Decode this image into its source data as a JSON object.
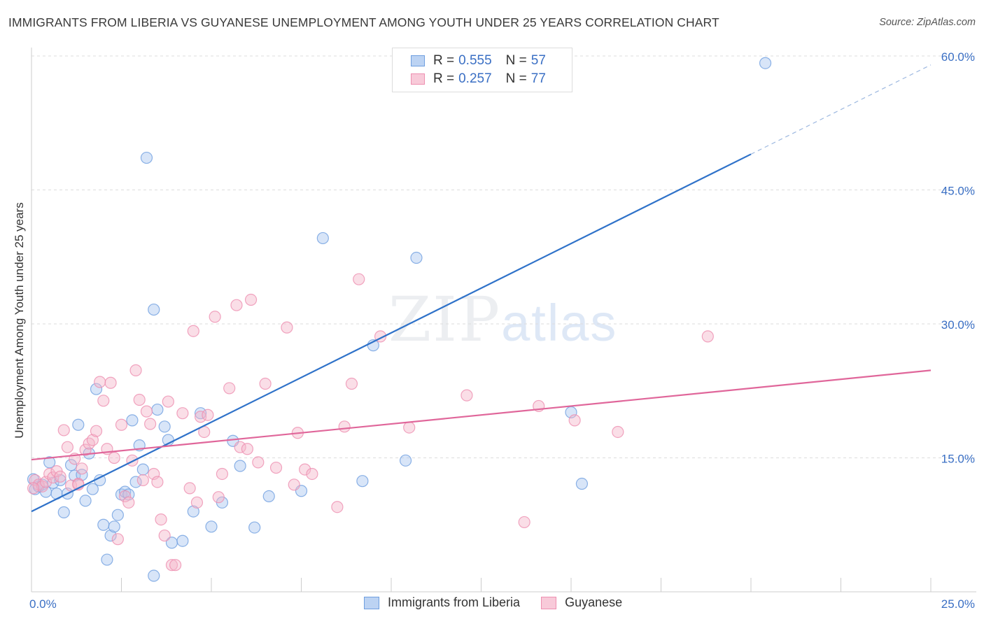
{
  "title": "IMMIGRANTS FROM LIBERIA VS GUYANESE UNEMPLOYMENT AMONG YOUTH UNDER 25 YEARS CORRELATION CHART",
  "source": "Source: ZipAtlas.com",
  "watermark": {
    "zip": "ZIP",
    "atlas": "atlas"
  },
  "legend": [
    {
      "r_label": "R =",
      "r_value": "0.555",
      "n_label": "N =",
      "n_value": "57",
      "color": "#a8c6f0"
    },
    {
      "r_label": "R =",
      "r_value": "0.257",
      "n_label": "N =",
      "n_value": "77",
      "color": "#f5b5ca"
    }
  ],
  "chart_data": {
    "type": "scatter",
    "ylabel": "Unemployment Among Youth under 25 years",
    "xlim": [
      0,
      25
    ],
    "ylim": [
      0,
      60
    ],
    "x_tick_labels": [
      "0.0%",
      "25.0%"
    ],
    "y_ticks": [
      15,
      30,
      45,
      60
    ],
    "y_tick_labels": [
      "15.0%",
      "30.0%",
      "45.0%",
      "60.0%"
    ],
    "grid": "horizontal dashed",
    "legend_position": "bottom",
    "series": [
      {
        "name": "Immigrants from Liberia",
        "color": "#6f9fe0",
        "fill": "#a8c6f0",
        "trend": {
          "x0": 0,
          "y0": 9.0,
          "x1": 20.0,
          "y1": 49.0,
          "dashed_to_x": 25,
          "dashed_to_y": 59.0,
          "color": "#2f72c9"
        },
        "points": [
          [
            0.1,
            11.5
          ],
          [
            0.2,
            11.8
          ],
          [
            0.3,
            12.0
          ],
          [
            0.4,
            11.2
          ],
          [
            0.5,
            14.5
          ],
          [
            0.6,
            12.2
          ],
          [
            0.7,
            11.0
          ],
          [
            0.8,
            12.5
          ],
          [
            0.9,
            8.9
          ],
          [
            1.0,
            11.0
          ],
          [
            1.1,
            14.2
          ],
          [
            1.2,
            13.0
          ],
          [
            1.3,
            18.7
          ],
          [
            1.4,
            13.1
          ],
          [
            1.5,
            10.2
          ],
          [
            1.6,
            15.5
          ],
          [
            1.7,
            11.5
          ],
          [
            1.8,
            22.7
          ],
          [
            1.9,
            12.5
          ],
          [
            2.0,
            7.5
          ],
          [
            2.1,
            3.6
          ],
          [
            2.2,
            6.3
          ],
          [
            2.3,
            7.3
          ],
          [
            2.4,
            8.6
          ],
          [
            2.5,
            10.9
          ],
          [
            2.6,
            11.2
          ],
          [
            2.7,
            10.9
          ],
          [
            2.8,
            19.2
          ],
          [
            2.9,
            12.3
          ],
          [
            3.0,
            16.4
          ],
          [
            3.1,
            13.7
          ],
          [
            3.2,
            48.6
          ],
          [
            3.4,
            1.8
          ],
          [
            3.5,
            20.4
          ],
          [
            3.7,
            18.5
          ],
          [
            3.8,
            17.0
          ],
          [
            3.4,
            31.6
          ],
          [
            3.9,
            5.5
          ],
          [
            4.2,
            5.7
          ],
          [
            4.5,
            9.0
          ],
          [
            4.7,
            20.0
          ],
          [
            5.0,
            7.3
          ],
          [
            5.3,
            10.0
          ],
          [
            5.6,
            16.9
          ],
          [
            5.8,
            14.1
          ],
          [
            6.2,
            7.2
          ],
          [
            6.6,
            10.7
          ],
          [
            7.5,
            11.3
          ],
          [
            8.1,
            39.6
          ],
          [
            9.2,
            12.4
          ],
          [
            9.5,
            27.6
          ],
          [
            10.4,
            14.7
          ],
          [
            10.7,
            37.4
          ],
          [
            15.0,
            20.1
          ],
          [
            15.3,
            12.1
          ],
          [
            20.4,
            59.2
          ],
          [
            0.05,
            12.6
          ]
        ]
      },
      {
        "name": "Guyanese",
        "color": "#ee8fb0",
        "fill": "#f5b5ca",
        "trend": {
          "x0": 0,
          "y0": 14.8,
          "x1": 25,
          "y1": 24.8,
          "color": "#e0669a"
        },
        "points": [
          [
            0.1,
            12.5
          ],
          [
            0.2,
            12.0
          ],
          [
            0.3,
            11.8
          ],
          [
            0.4,
            12.3
          ],
          [
            0.5,
            13.2
          ],
          [
            0.6,
            12.8
          ],
          [
            0.7,
            13.5
          ],
          [
            0.8,
            12.9
          ],
          [
            0.9,
            18.1
          ],
          [
            1.0,
            16.2
          ],
          [
            1.1,
            11.9
          ],
          [
            1.2,
            14.9
          ],
          [
            1.3,
            12.1
          ],
          [
            1.4,
            13.8
          ],
          [
            1.5,
            15.9
          ],
          [
            1.6,
            16.6
          ],
          [
            1.7,
            17.0
          ],
          [
            1.8,
            18.0
          ],
          [
            1.9,
            23.5
          ],
          [
            2.0,
            21.4
          ],
          [
            2.1,
            16.0
          ],
          [
            2.2,
            23.4
          ],
          [
            2.3,
            15.0
          ],
          [
            2.4,
            5.9
          ],
          [
            2.5,
            18.7
          ],
          [
            2.6,
            10.7
          ],
          [
            2.7,
            10.0
          ],
          [
            2.8,
            14.7
          ],
          [
            2.9,
            24.8
          ],
          [
            3.0,
            21.5
          ],
          [
            3.1,
            12.5
          ],
          [
            3.2,
            20.2
          ],
          [
            3.3,
            18.8
          ],
          [
            3.4,
            13.2
          ],
          [
            3.5,
            12.3
          ],
          [
            3.6,
            8.1
          ],
          [
            3.7,
            6.3
          ],
          [
            3.8,
            21.3
          ],
          [
            3.9,
            3.0
          ],
          [
            4.0,
            3.0
          ],
          [
            4.2,
            20.0
          ],
          [
            4.4,
            11.6
          ],
          [
            4.5,
            29.2
          ],
          [
            4.6,
            10.0
          ],
          [
            4.7,
            19.6
          ],
          [
            4.8,
            17.9
          ],
          [
            4.9,
            19.8
          ],
          [
            5.1,
            30.8
          ],
          [
            5.2,
            10.6
          ],
          [
            5.3,
            13.2
          ],
          [
            5.5,
            22.8
          ],
          [
            5.7,
            32.1
          ],
          [
            5.8,
            16.2
          ],
          [
            6.0,
            16.0
          ],
          [
            6.1,
            32.7
          ],
          [
            6.3,
            14.5
          ],
          [
            6.5,
            23.3
          ],
          [
            6.8,
            13.9
          ],
          [
            7.1,
            29.6
          ],
          [
            7.4,
            17.8
          ],
          [
            7.6,
            13.7
          ],
          [
            7.8,
            13.2
          ],
          [
            7.3,
            12.0
          ],
          [
            8.5,
            9.5
          ],
          [
            8.7,
            18.5
          ],
          [
            8.9,
            23.3
          ],
          [
            9.1,
            35.0
          ],
          [
            9.7,
            28.6
          ],
          [
            10.5,
            18.4
          ],
          [
            12.1,
            22.0
          ],
          [
            13.7,
            7.8
          ],
          [
            14.1,
            20.8
          ],
          [
            15.1,
            19.2
          ],
          [
            16.3,
            17.9
          ],
          [
            18.8,
            28.6
          ],
          [
            1.3,
            12.0
          ],
          [
            0.05,
            11.6
          ]
        ]
      }
    ]
  }
}
